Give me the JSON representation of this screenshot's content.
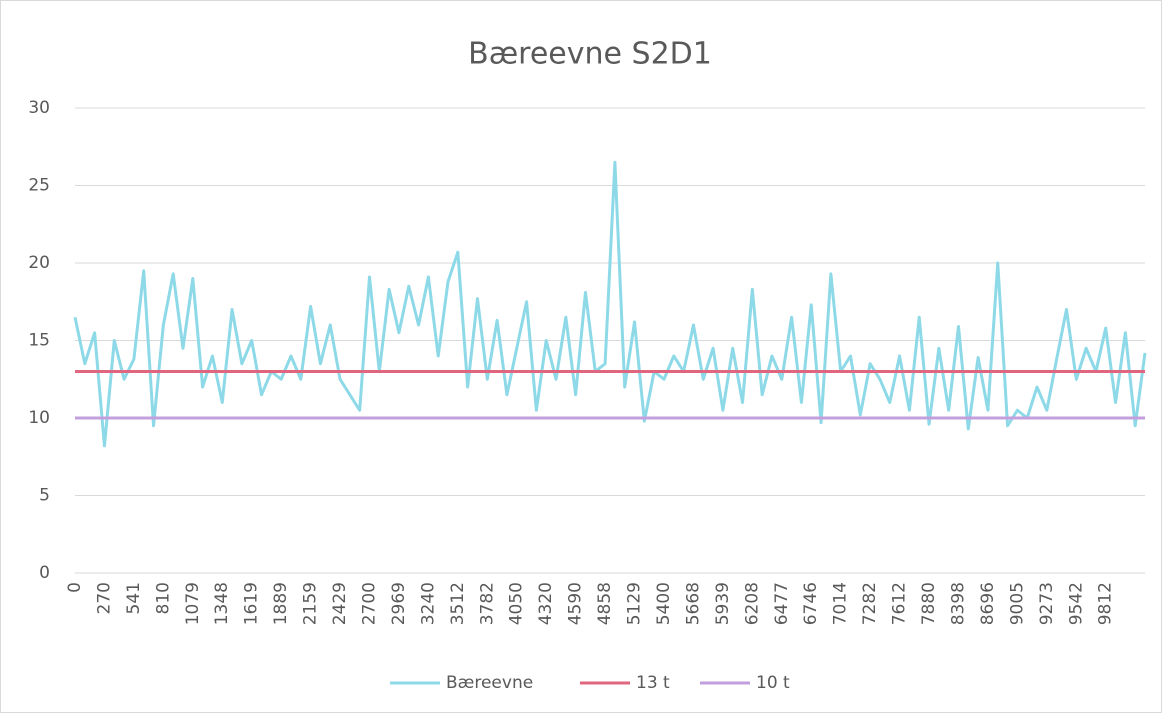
{
  "chart_data": {
    "type": "line",
    "title": "Bæreevne S2D1",
    "categories": [
      "0",
      null,
      null,
      "270",
      null,
      null,
      "541",
      null,
      null,
      "810",
      null,
      null,
      "1079",
      null,
      null,
      "1348",
      null,
      null,
      "1619",
      null,
      null,
      "1889",
      null,
      null,
      "2159",
      null,
      null,
      "2429",
      null,
      null,
      "2700",
      null,
      null,
      "2969",
      null,
      null,
      "3240",
      null,
      null,
      "3512",
      null,
      null,
      "3782",
      null,
      null,
      "4050",
      null,
      null,
      "4320",
      null,
      null,
      "4590",
      null,
      null,
      "4858",
      null,
      null,
      "5129",
      null,
      null,
      "5400",
      null,
      null,
      "5668",
      null,
      null,
      "5939",
      null,
      null,
      "6208",
      null,
      null,
      "6477",
      null,
      null,
      "6746",
      null,
      null,
      "7014",
      null,
      null,
      "7282",
      null,
      null,
      "7612",
      null,
      null,
      "7880",
      null,
      null,
      "8398",
      null,
      null,
      "8696",
      null,
      null,
      "9005",
      null,
      null,
      "9273",
      null,
      null,
      "9542",
      null,
      null,
      "9812",
      null,
      null,
      null,
      null
    ],
    "series": [
      {
        "name": "Bæreevne",
        "color": "#8dd9e8",
        "values": [
          16.5,
          13.5,
          15.5,
          8.2,
          15,
          12.5,
          13.8,
          19.5,
          9.5,
          16,
          19.3,
          14.5,
          19,
          12,
          14,
          11,
          17,
          13.5,
          15,
          11.5,
          13,
          12.5,
          14,
          12.5,
          17.2,
          13.5,
          16,
          12.5,
          11.5,
          10.5,
          19.1,
          13,
          18.3,
          15.5,
          18.5,
          16,
          19.1,
          14,
          18.8,
          20.7,
          12,
          17.7,
          12.5,
          16.3,
          11.5,
          14.5,
          17.5,
          10.5,
          15,
          12.5,
          16.5,
          11.5,
          18.1,
          13,
          13.5,
          26.5,
          12,
          16.2,
          9.8,
          13,
          12.5,
          14,
          13,
          16,
          12.5,
          14.5,
          10.5,
          14.5,
          11,
          18.3,
          11.5,
          14,
          12.5,
          16.5,
          11,
          17.3,
          9.7,
          19.3,
          13,
          14,
          10.2,
          13.5,
          12.5,
          11,
          14,
          10.5,
          16.5,
          9.6,
          14.5,
          10.5,
          15.9,
          9.3,
          13.9,
          10.5,
          20,
          9.5,
          10.5,
          10,
          12,
          10.5,
          13.8,
          17,
          12.5,
          14.5,
          13,
          15.8,
          11,
          15.5,
          9.5,
          14.2
        ]
      },
      {
        "name": "13 t",
        "color": "#e0667f",
        "values": [
          13,
          13,
          13,
          13,
          13,
          13,
          13,
          13,
          13,
          13,
          13,
          13,
          13,
          13,
          13,
          13,
          13,
          13,
          13,
          13,
          13,
          13,
          13,
          13,
          13,
          13,
          13,
          13,
          13,
          13,
          13,
          13,
          13,
          13,
          13,
          13,
          13,
          13,
          13,
          13,
          13,
          13,
          13,
          13,
          13,
          13,
          13,
          13,
          13,
          13,
          13,
          13,
          13,
          13,
          13,
          13,
          13,
          13,
          13,
          13,
          13,
          13,
          13,
          13,
          13,
          13,
          13,
          13,
          13,
          13,
          13,
          13,
          13,
          13,
          13,
          13,
          13,
          13,
          13,
          13,
          13,
          13,
          13,
          13,
          13,
          13,
          13,
          13,
          13,
          13,
          13,
          13,
          13,
          13,
          13,
          13,
          13,
          13,
          13,
          13,
          13,
          13,
          13,
          13,
          13,
          13,
          13,
          13,
          13,
          13
        ]
      },
      {
        "name": "10 t",
        "color": "#c39fde",
        "values": [
          10,
          10,
          10,
          10,
          10,
          10,
          10,
          10,
          10,
          10,
          10,
          10,
          10,
          10,
          10,
          10,
          10,
          10,
          10,
          10,
          10,
          10,
          10,
          10,
          10,
          10,
          10,
          10,
          10,
          10,
          10,
          10,
          10,
          10,
          10,
          10,
          10,
          10,
          10,
          10,
          10,
          10,
          10,
          10,
          10,
          10,
          10,
          10,
          10,
          10,
          10,
          10,
          10,
          10,
          10,
          10,
          10,
          10,
          10,
          10,
          10,
          10,
          10,
          10,
          10,
          10,
          10,
          10,
          10,
          10,
          10,
          10,
          10,
          10,
          10,
          10,
          10,
          10,
          10,
          10,
          10,
          10,
          10,
          10,
          10,
          10,
          10,
          10,
          10,
          10,
          10,
          10,
          10,
          10,
          10,
          10,
          10,
          10,
          10,
          10,
          10,
          10,
          10,
          10,
          10,
          10,
          10,
          10,
          10,
          10
        ]
      }
    ],
    "ylim": [
      0,
      30
    ],
    "yticks": [
      0,
      5,
      10,
      15,
      20,
      25,
      30
    ],
    "grid": true,
    "legend": "bottom"
  }
}
